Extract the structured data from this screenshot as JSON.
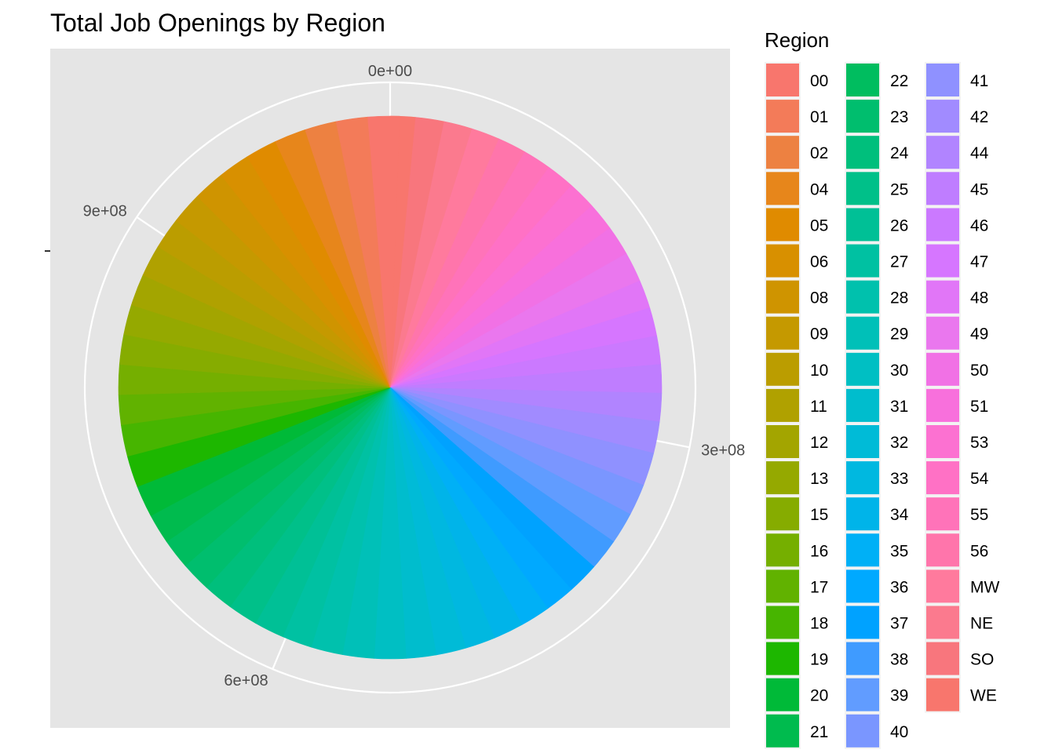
{
  "chart_data": {
    "type": "pie",
    "title": "Total Job Openings by Region",
    "legend_title": "Region",
    "legend_placement": "right",
    "axis_label": "",
    "ticks": [
      {
        "value": 0,
        "label": "0e+00"
      },
      {
        "value": 300000000,
        "label": "3e+08"
      },
      {
        "value": 600000000,
        "label": "6e+08"
      },
      {
        "value": 900000000,
        "label": "9e+08"
      }
    ],
    "axis_max": 1066000000,
    "categories": [
      "00",
      "01",
      "02",
      "04",
      "05",
      "06",
      "08",
      "09",
      "10",
      "11",
      "12",
      "13",
      "15",
      "16",
      "17",
      "18",
      "19",
      "20",
      "21",
      "22",
      "23",
      "24",
      "25",
      "26",
      "27",
      "28",
      "29",
      "30",
      "31",
      "32",
      "33",
      "34",
      "35",
      "36",
      "37",
      "38",
      "39",
      "40",
      "41",
      "42",
      "44",
      "45",
      "46",
      "47",
      "48",
      "49",
      "50",
      "51",
      "53",
      "54",
      "55",
      "56",
      "MW",
      "NE",
      "SO",
      "WE"
    ],
    "stack_order": [
      "WE",
      "SO",
      "NE",
      "MW",
      "56",
      "55",
      "54",
      "53",
      "51",
      "50",
      "49",
      "48",
      "47",
      "46",
      "45",
      "44",
      "42",
      "41",
      "40",
      "39",
      "38",
      "37",
      "36",
      "35",
      "34",
      "33",
      "32",
      "31",
      "30",
      "29",
      "28",
      "27",
      "26",
      "25",
      "24",
      "23",
      "22",
      "21",
      "20",
      "19",
      "18",
      "17",
      "16",
      "15",
      "13",
      "12",
      "11",
      "10",
      "09",
      "08",
      "06",
      "05",
      "04",
      "02",
      "01",
      "00"
    ],
    "values": {
      "WE": 16000000,
      "SO": 18000000,
      "NE": 18000000,
      "MW": 18000000,
      "56": 18000000,
      "55": 18000000,
      "54": 18000000,
      "53": 18000000,
      "51": 18000000,
      "50": 19000000,
      "49": 19000000,
      "48": 18000000,
      "47": 18000000,
      "46": 18000000,
      "45": 18000000,
      "44": 18000000,
      "42": 20000000,
      "41": 21000000,
      "40": 20000000,
      "39": 20000000,
      "38": 20000000,
      "37": 20000000,
      "36": 19000000,
      "35": 19000000,
      "34": 19000000,
      "33": 19000000,
      "32": 19000000,
      "31": 19000000,
      "30": 20000000,
      "29": 20000000,
      "28": 20000000,
      "27": 19000000,
      "26": 19000000,
      "25": 19000000,
      "24": 19000000,
      "23": 19000000,
      "22": 19000000,
      "21": 19000000,
      "20": 20000000,
      "19": 20000000,
      "18": 20000000,
      "17": 19000000,
      "16": 19000000,
      "15": 19000000,
      "13": 19000000,
      "12": 20000000,
      "11": 20000000,
      "10": 20000000,
      "09": 20000000,
      "08": 20000000,
      "06": 20000000,
      "05": 20000000,
      "04": 20000000,
      "02": 20000000,
      "01": 20000000,
      "00": 20000000
    },
    "colors": {
      "00": "#F8766D",
      "01": "#F37B59",
      "02": "#ED8141",
      "04": "#E7861B",
      "05": "#E08B00",
      "06": "#D89000",
      "08": "#CF9400",
      "09": "#C59900",
      "10": "#BB9D00",
      "11": "#B0A100",
      "12": "#A3A500",
      "13": "#95A900",
      "15": "#86AC00",
      "16": "#75AF00",
      "17": "#61B200",
      "18": "#47B500",
      "19": "#1DB700",
      "20": "#00BA38",
      "21": "#00BB4E",
      "22": "#00BD5F",
      "23": "#00BE6E",
      "24": "#00BF7C",
      "25": "#00C089",
      "26": "#00C096",
      "27": "#00C1A2",
      "28": "#00C1AD",
      "29": "#00C0B8",
      "30": "#00BFC3",
      "31": "#00BDCD",
      "32": "#00BBD7",
      "33": "#00B8E0",
      "34": "#00B4E9",
      "35": "#00B0F6",
      "36": "#00A9FF",
      "37": "#00A2FF",
      "38": "#3F9BFF",
      "39": "#619CFF",
      "40": "#7A96FF",
      "41": "#8F91FF",
      "42": "#A18BFF",
      "44": "#B184FF",
      "45": "#BF7DFF",
      "46": "#CB79FF",
      "47": "#D676FF",
      "48": "#E176F7",
      "49": "#EA77EE",
      "50": "#F171E5",
      "51": "#F870DC",
      "53": "#FC71D1",
      "54": "#FF71C5",
      "55": "#FF73B9",
      "56": "#FF75AB",
      "MW": "#FF7A9D",
      "NE": "#FB7A8E",
      "SO": "#F8767D",
      "WE": "#F8766D"
    },
    "panel_background": "#E5E5E5",
    "grid_color": "#FFFFFF"
  }
}
